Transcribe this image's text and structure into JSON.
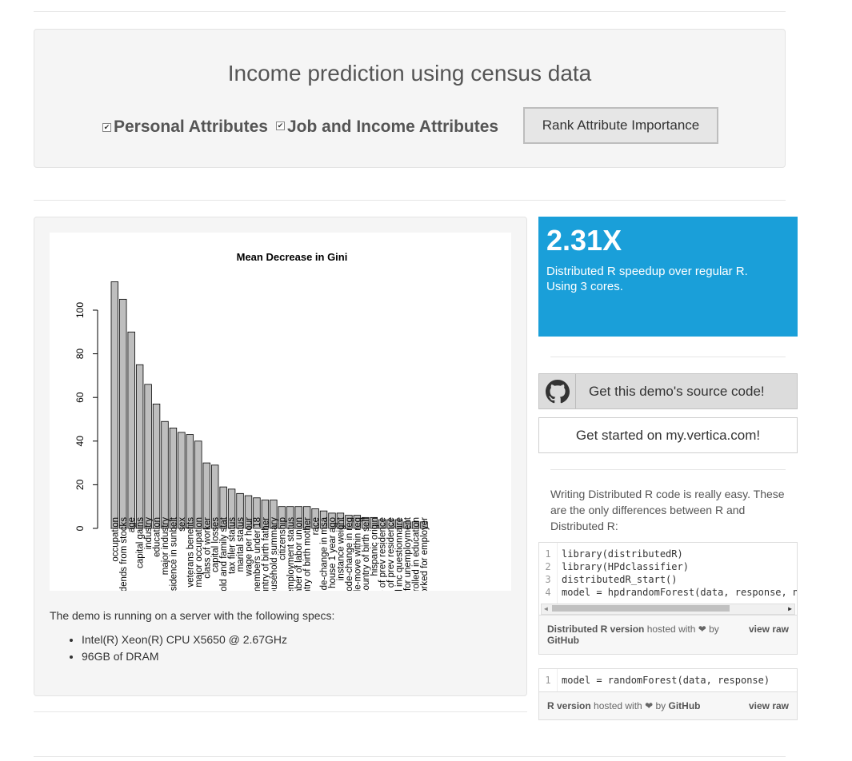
{
  "header": {
    "title": "Income prediction using census data",
    "checkbox_personal": "Personal Attributes",
    "checkbox_job": "Job and Income Attributes",
    "rank_button": "Rank Attribute Importance"
  },
  "chart_data": {
    "type": "bar",
    "title": "Mean Decrease in Gini",
    "xlabel": "",
    "ylabel": "",
    "ylim": [
      0,
      115
    ],
    "yticks": [
      0,
      20,
      40,
      60,
      80,
      100
    ],
    "categories": [
      "occupation",
      "dividends from stocks",
      "age",
      "capital gains",
      "industry",
      "education",
      "major industry",
      "prev residence in sunbelt",
      "sex",
      "veterans benefits",
      "major occupation",
      "class of worker",
      "capital losses",
      "household and family stat",
      "tax filer status",
      "marital status",
      "wage per hour",
      "family members under 18",
      "country of birth father",
      "household summary",
      "citizenship",
      "employment status",
      "member of labor union",
      "country of birth mother",
      "race",
      "code-change in msa",
      "in same house 1 year ago",
      "instance weight",
      "code-change in reg",
      "code-move within reg",
      "country of birth self",
      "hispanic origin",
      "state of prev residence",
      "region of prev residence",
      "fill inc questionnaire",
      "reason for unemployment",
      "enrolled in education",
      "persons worked for employer"
    ],
    "values": [
      113,
      105,
      90,
      75,
      66,
      57,
      49,
      46,
      44,
      43,
      40,
      30,
      29,
      19,
      18,
      16,
      15,
      14,
      13,
      13,
      10,
      10,
      10,
      10,
      9,
      8,
      7,
      7,
      6,
      6,
      5,
      5,
      4,
      4,
      4,
      3,
      3,
      3
    ]
  },
  "specs": {
    "intro": "The demo is running on a server with the following specs:",
    "cpu": "Intel(R) Xeon(R) CPU X5650 @ 2.67GHz",
    "ram": "96GB of DRAM"
  },
  "speedup": {
    "value": "2.31X",
    "line1": "Distributed R speedup over regular R.",
    "line2": "Using 3 cores."
  },
  "github_button": "Get this demo's source code!",
  "vertica_button": "Get started on my.vertica.com!",
  "code_intro": "Writing Distributed R code is really easy. These are the only differences between R and Distributed R:",
  "gist1": {
    "lines": [
      {
        "n": "1",
        "code": "library(distributedR)"
      },
      {
        "n": "2",
        "code": "library(HPdclassifier)"
      },
      {
        "n": "3",
        "code": "distributedR_start()"
      },
      {
        "n": "4",
        "code": "model = hpdrandomForest(data, response, n"
      }
    ],
    "meta_link": "Distributed R version",
    "meta_hosted": "hosted with ❤ by",
    "meta_github": "GitHub",
    "view_raw": "view raw"
  },
  "gist2": {
    "lines": [
      {
        "n": "1",
        "code": "model = randomForest(data, response)"
      }
    ],
    "meta_link": "R version",
    "meta_hosted": "hosted with ❤ by",
    "meta_github": "GitHub",
    "view_raw": "view raw"
  },
  "colors": {
    "accent": "#1a9fd9",
    "bar": "#bebebe"
  },
  "icons": {
    "github": "github-icon",
    "checkbox": "checkbox-checked-icon"
  }
}
